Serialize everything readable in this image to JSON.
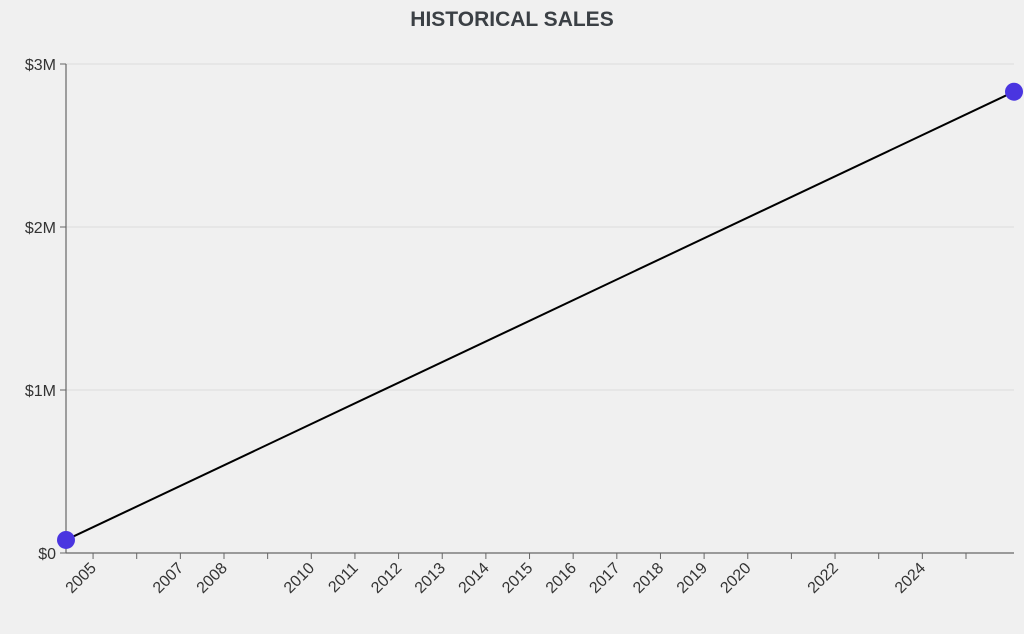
{
  "chart_data": {
    "type": "line",
    "title": "HISTORICAL SALES",
    "xlabel": "",
    "ylabel": "",
    "x": [
      2004.38,
      2026.1
    ],
    "values": [
      80000,
      2830000
    ],
    "xlim": [
      2004.38,
      2026.1
    ],
    "ylim": [
      0,
      3000000
    ],
    "y_ticks": [
      {
        "v": 0,
        "label": "$0"
      },
      {
        "v": 1000000,
        "label": "$1M"
      },
      {
        "v": 2000000,
        "label": "$2M"
      },
      {
        "v": 3000000,
        "label": "$3M"
      }
    ],
    "x_ticks": [
      {
        "v": 2005,
        "label": "2005"
      },
      {
        "v": 2006,
        "label": ""
      },
      {
        "v": 2007,
        "label": "2007"
      },
      {
        "v": 2008,
        "label": "2008"
      },
      {
        "v": 2009,
        "label": ""
      },
      {
        "v": 2010,
        "label": "2010"
      },
      {
        "v": 2011,
        "label": "2011"
      },
      {
        "v": 2012,
        "label": "2012"
      },
      {
        "v": 2013,
        "label": "2013"
      },
      {
        "v": 2014,
        "label": "2014"
      },
      {
        "v": 2015,
        "label": "2015"
      },
      {
        "v": 2016,
        "label": "2016"
      },
      {
        "v": 2017,
        "label": "2017"
      },
      {
        "v": 2018,
        "label": "2018"
      },
      {
        "v": 2019,
        "label": "2019"
      },
      {
        "v": 2020,
        "label": "2020"
      },
      {
        "v": 2021,
        "label": ""
      },
      {
        "v": 2022,
        "label": "2022"
      },
      {
        "v": 2023,
        "label": ""
      },
      {
        "v": 2024,
        "label": "2024"
      },
      {
        "v": 2025,
        "label": ""
      }
    ],
    "grid": true,
    "legend": "none",
    "colors": {
      "line": "#000000",
      "point": "#4a35e0",
      "grid": "#dcdcdc",
      "axis": "#666666"
    }
  }
}
